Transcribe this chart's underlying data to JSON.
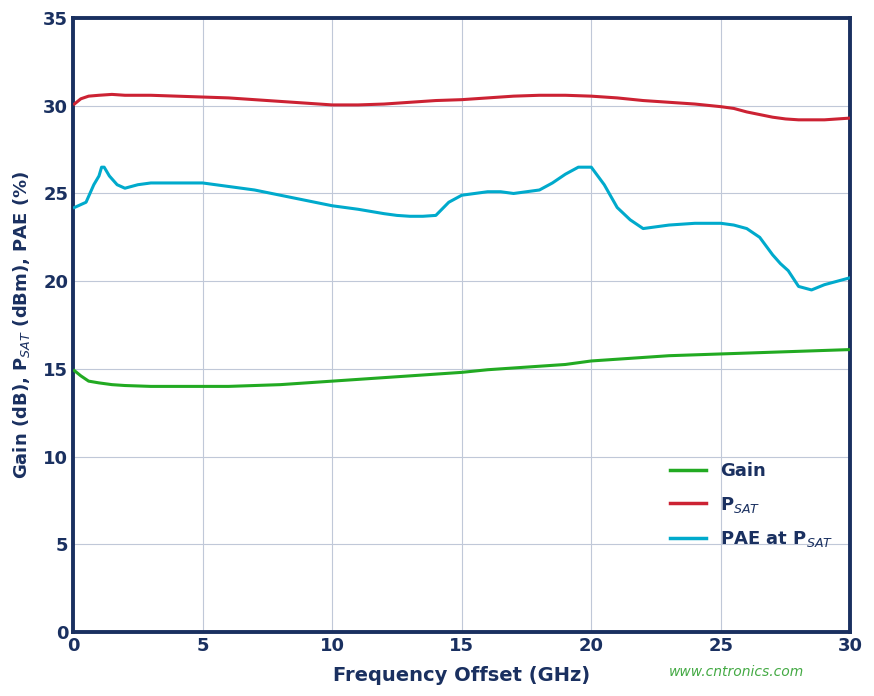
{
  "xlabel": "Frequency Offset (GHz)",
  "ylabel": "Gain (dB), P$_{SAT}$ (dBm), PAE (%)",
  "xlim": [
    0,
    30
  ],
  "ylim": [
    0,
    35
  ],
  "xticks": [
    0,
    5,
    10,
    15,
    20,
    25,
    30
  ],
  "yticks": [
    0,
    5,
    10,
    15,
    20,
    25,
    30,
    35
  ],
  "background_color": "#ffffff",
  "grid_color": "#c0c8d8",
  "axis_color": "#1a3060",
  "watermark": "www.cntronics.com",
  "watermark_color": "#44aa44",
  "line_colors": {
    "gain": "#22aa22",
    "psat": "#cc2233",
    "pae": "#00aacc"
  },
  "gain_x": [
    0.05,
    0.3,
    0.6,
    1.0,
    1.5,
    2.0,
    3.0,
    4.0,
    5.0,
    6.0,
    7.0,
    8.0,
    9.0,
    10.0,
    11.0,
    12.0,
    13.0,
    14.0,
    15.0,
    16.0,
    17.0,
    18.0,
    18.5,
    19.0,
    19.5,
    20.0,
    20.5,
    21.0,
    21.5,
    22.0,
    22.5,
    23.0,
    24.0,
    25.0,
    26.0,
    27.0,
    28.0,
    29.0,
    30.0
  ],
  "gain_y": [
    14.9,
    14.6,
    14.3,
    14.2,
    14.1,
    14.05,
    14.0,
    14.0,
    14.0,
    14.0,
    14.05,
    14.1,
    14.2,
    14.3,
    14.4,
    14.5,
    14.6,
    14.7,
    14.8,
    14.95,
    15.05,
    15.15,
    15.2,
    15.25,
    15.35,
    15.45,
    15.5,
    15.55,
    15.6,
    15.65,
    15.7,
    15.75,
    15.8,
    15.85,
    15.9,
    15.95,
    16.0,
    16.05,
    16.1
  ],
  "psat_x": [
    0.05,
    0.3,
    0.6,
    1.0,
    1.5,
    2.0,
    3.0,
    4.0,
    5.0,
    6.0,
    7.0,
    8.0,
    9.0,
    10.0,
    11.0,
    12.0,
    13.0,
    14.0,
    15.0,
    16.0,
    17.0,
    18.0,
    19.0,
    20.0,
    21.0,
    22.0,
    23.0,
    24.0,
    25.0,
    25.5,
    26.0,
    27.0,
    27.5,
    28.0,
    29.0,
    30.0
  ],
  "psat_y": [
    30.1,
    30.4,
    30.55,
    30.6,
    30.65,
    30.6,
    30.6,
    30.55,
    30.5,
    30.45,
    30.35,
    30.25,
    30.15,
    30.05,
    30.05,
    30.1,
    30.2,
    30.3,
    30.35,
    30.45,
    30.55,
    30.6,
    30.6,
    30.55,
    30.45,
    30.3,
    30.2,
    30.1,
    29.95,
    29.85,
    29.65,
    29.35,
    29.25,
    29.2,
    29.2,
    29.3
  ],
  "pae_x": [
    0.05,
    0.5,
    0.8,
    1.0,
    1.1,
    1.2,
    1.4,
    1.7,
    2.0,
    2.5,
    3.0,
    4.0,
    5.0,
    6.0,
    7.0,
    8.0,
    9.0,
    10.0,
    11.0,
    12.0,
    12.5,
    13.0,
    13.5,
    14.0,
    14.5,
    15.0,
    15.5,
    16.0,
    16.5,
    17.0,
    17.5,
    18.0,
    18.5,
    19.0,
    19.5,
    20.0,
    20.5,
    21.0,
    21.5,
    22.0,
    22.5,
    23.0,
    23.5,
    24.0,
    24.5,
    25.0,
    25.5,
    26.0,
    26.5,
    27.0,
    27.3,
    27.6,
    28.0,
    28.5,
    29.0,
    29.5,
    30.0
  ],
  "pae_y": [
    24.2,
    24.5,
    25.5,
    26.0,
    26.5,
    26.5,
    26.0,
    25.5,
    25.3,
    25.5,
    25.6,
    25.6,
    25.6,
    25.4,
    25.2,
    24.9,
    24.6,
    24.3,
    24.1,
    23.85,
    23.75,
    23.7,
    23.7,
    23.75,
    24.5,
    24.9,
    25.0,
    25.1,
    25.1,
    25.0,
    25.1,
    25.2,
    25.6,
    26.1,
    26.5,
    26.5,
    25.5,
    24.2,
    23.5,
    23.0,
    23.1,
    23.2,
    23.25,
    23.3,
    23.3,
    23.3,
    23.2,
    23.0,
    22.5,
    21.5,
    21.0,
    20.6,
    19.7,
    19.5,
    19.8,
    20.0,
    20.2
  ]
}
